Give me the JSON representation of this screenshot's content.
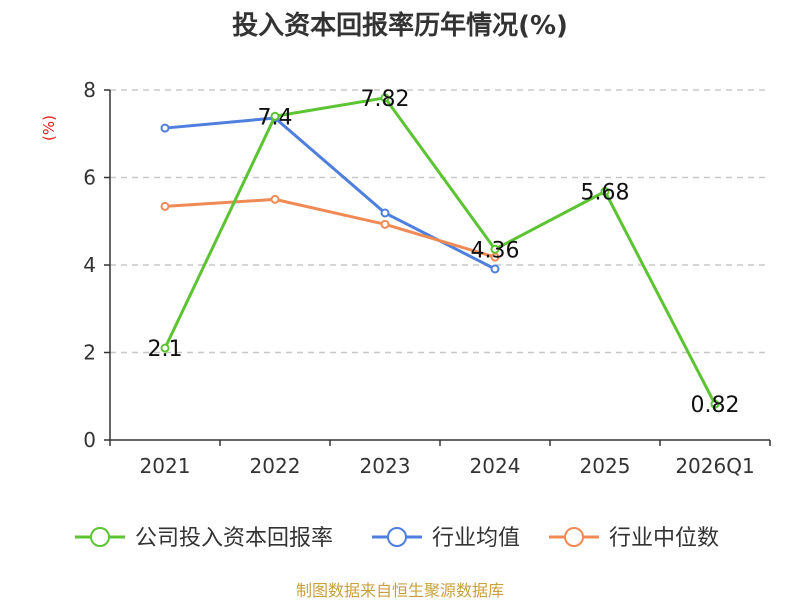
{
  "title": "投入资本回报率历年情况(%)",
  "source": "制图数据来自恒生聚源数据库",
  "chart_data": {
    "type": "line",
    "title": "投入资本回报率历年情况(%)",
    "ylabel": "(%)",
    "xlabel": "",
    "ylim": [
      0,
      8
    ],
    "yticks": [
      0,
      2,
      4,
      6,
      8
    ],
    "categories": [
      "2021",
      "2022",
      "2023",
      "2024",
      "2025",
      "2026Q1"
    ],
    "grid": true,
    "legend_position": "bottom",
    "series": [
      {
        "name": "公司投入资本回报率",
        "color": "#5cc433",
        "values": [
          2.1,
          7.4,
          7.82,
          4.36,
          5.68,
          0.82
        ],
        "labels": [
          "2.1",
          "7.4",
          "7.82",
          "4.36",
          "5.68",
          "0.82"
        ]
      },
      {
        "name": "行业均值",
        "color": "#4f7fdd",
        "values": [
          7.13,
          7.36,
          5.19,
          3.91,
          null,
          null
        ]
      },
      {
        "name": "行业中位数",
        "color": "#f08a55",
        "values": [
          5.34,
          5.5,
          4.93,
          4.18,
          null,
          null
        ]
      }
    ]
  }
}
